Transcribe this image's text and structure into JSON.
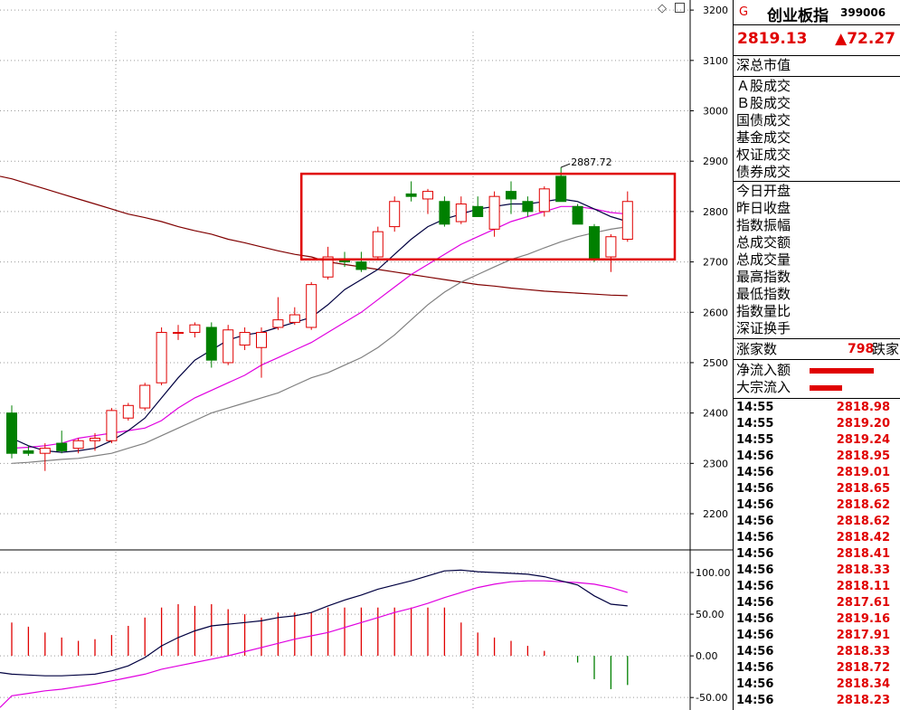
{
  "header": {
    "flag": "G",
    "index_name": "创业板指",
    "index_code": "399006",
    "price": "2819.13",
    "change": "▲72.27"
  },
  "stats_top": [
    "深总市值"
  ],
  "stats_volume": [
    "Ａ股成交",
    "Ｂ股成交",
    "国债成交",
    "基金成交",
    "权证成交",
    "债券成交"
  ],
  "stats_quote": [
    "今日开盘",
    "昨日收盘",
    "指数振幅",
    "总成交额",
    "总成交量",
    "最高指数",
    "最低指数",
    "指数量比",
    "深证换手"
  ],
  "rise": {
    "label": "涨家数",
    "value": "798",
    "label2": "跌家"
  },
  "flow": [
    {
      "label": "净流入额",
      "fraction": 0.75
    },
    {
      "label": "大宗流入",
      "fraction": 0.38
    }
  ],
  "ticks": [
    {
      "time": "14:55",
      "price": "2818.98"
    },
    {
      "time": "14:55",
      "price": "2819.20"
    },
    {
      "time": "14:55",
      "price": "2819.24"
    },
    {
      "time": "14:56",
      "price": "2818.95"
    },
    {
      "time": "14:56",
      "price": "2819.01"
    },
    {
      "time": "14:56",
      "price": "2818.65"
    },
    {
      "time": "14:56",
      "price": "2818.62"
    },
    {
      "time": "14:56",
      "price": "2818.62"
    },
    {
      "time": "14:56",
      "price": "2818.42"
    },
    {
      "time": "14:56",
      "price": "2818.41"
    },
    {
      "time": "14:56",
      "price": "2818.33"
    },
    {
      "time": "14:56",
      "price": "2818.11"
    },
    {
      "time": "14:56",
      "price": "2817.61"
    },
    {
      "time": "14:56",
      "price": "2819.16"
    },
    {
      "time": "14:56",
      "price": "2817.91"
    },
    {
      "time": "14:56",
      "price": "2818.33"
    },
    {
      "time": "14:56",
      "price": "2818.72"
    },
    {
      "time": "14:56",
      "price": "2818.34"
    },
    {
      "time": "14:56",
      "price": "2818.23"
    }
  ],
  "colors": {
    "up": "#e00000",
    "down": "#008000",
    "ma_short": "#000040",
    "ma_mid": "#e000e0",
    "ma_long": "#808080",
    "ma_longest": "#800000",
    "highlight": "#e00000"
  },
  "chart_data": {
    "type": "candlestick",
    "price_axis": {
      "ticks": [
        3200,
        3100,
        3000,
        2900,
        2800,
        2700,
        2600,
        2500,
        2400,
        2300,
        2200
      ],
      "range": [
        2130,
        3220
      ]
    },
    "high_label": "2887.72",
    "candles": [
      {
        "o": 2400,
        "h": 2415,
        "l": 2310,
        "c": 2320
      },
      {
        "o": 2325,
        "h": 2335,
        "l": 2315,
        "c": 2320
      },
      {
        "o": 2320,
        "h": 2340,
        "l": 2285,
        "c": 2330
      },
      {
        "o": 2340,
        "h": 2365,
        "l": 2320,
        "c": 2325
      },
      {
        "o": 2330,
        "h": 2350,
        "l": 2320,
        "c": 2345
      },
      {
        "o": 2345,
        "h": 2360,
        "l": 2325,
        "c": 2350
      },
      {
        "o": 2345,
        "h": 2410,
        "l": 2340,
        "c": 2405
      },
      {
        "o": 2390,
        "h": 2420,
        "l": 2385,
        "c": 2415
      },
      {
        "o": 2410,
        "h": 2460,
        "l": 2405,
        "c": 2455
      },
      {
        "o": 2460,
        "h": 2570,
        "l": 2455,
        "c": 2560
      },
      {
        "o": 2560,
        "h": 2575,
        "l": 2545,
        "c": 2560
      },
      {
        "o": 2560,
        "h": 2580,
        "l": 2550,
        "c": 2575
      },
      {
        "o": 2570,
        "h": 2580,
        "l": 2490,
        "c": 2505
      },
      {
        "o": 2500,
        "h": 2575,
        "l": 2495,
        "c": 2565
      },
      {
        "o": 2535,
        "h": 2570,
        "l": 2525,
        "c": 2560
      },
      {
        "o": 2530,
        "h": 2570,
        "l": 2470,
        "c": 2560
      },
      {
        "o": 2570,
        "h": 2630,
        "l": 2565,
        "c": 2585
      },
      {
        "o": 2580,
        "h": 2610,
        "l": 2575,
        "c": 2595
      },
      {
        "o": 2570,
        "h": 2660,
        "l": 2565,
        "c": 2655
      },
      {
        "o": 2670,
        "h": 2730,
        "l": 2665,
        "c": 2710
      },
      {
        "o": 2705,
        "h": 2720,
        "l": 2690,
        "c": 2700
      },
      {
        "o": 2700,
        "h": 2720,
        "l": 2680,
        "c": 2685
      },
      {
        "o": 2710,
        "h": 2770,
        "l": 2705,
        "c": 2760
      },
      {
        "o": 2770,
        "h": 2830,
        "l": 2760,
        "c": 2820
      },
      {
        "o": 2835,
        "h": 2860,
        "l": 2820,
        "c": 2830
      },
      {
        "o": 2825,
        "h": 2845,
        "l": 2795,
        "c": 2840
      },
      {
        "o": 2820,
        "h": 2830,
        "l": 2770,
        "c": 2775
      },
      {
        "o": 2780,
        "h": 2830,
        "l": 2775,
        "c": 2815
      },
      {
        "o": 2810,
        "h": 2830,
        "l": 2790,
        "c": 2790
      },
      {
        "o": 2765,
        "h": 2840,
        "l": 2750,
        "c": 2830
      },
      {
        "o": 2840,
        "h": 2860,
        "l": 2795,
        "c": 2825
      },
      {
        "o": 2820,
        "h": 2830,
        "l": 2790,
        "c": 2800
      },
      {
        "o": 2800,
        "h": 2850,
        "l": 2790,
        "c": 2845
      },
      {
        "o": 2870,
        "h": 2887.72,
        "l": 2820,
        "c": 2820
      },
      {
        "o": 2810,
        "h": 2815,
        "l": 2775,
        "c": 2775
      },
      {
        "o": 2770,
        "h": 2775,
        "l": 2700,
        "c": 2705
      },
      {
        "o": 2710,
        "h": 2755,
        "l": 2680,
        "c": 2750
      },
      {
        "o": 2745,
        "h": 2840,
        "l": 2740,
        "c": 2820
      }
    ],
    "ma_short": [
      2350,
      2335,
      2325,
      2322,
      2325,
      2330,
      2345,
      2365,
      2390,
      2430,
      2470,
      2505,
      2525,
      2545,
      2555,
      2560,
      2570,
      2580,
      2590,
      2615,
      2645,
      2665,
      2685,
      2715,
      2745,
      2770,
      2785,
      2795,
      2805,
      2810,
      2815,
      2815,
      2820,
      2825,
      2820,
      2805,
      2790,
      2780
    ],
    "ma_mid": [
      2330,
      2332,
      2335,
      2340,
      2350,
      2355,
      2360,
      2365,
      2370,
      2385,
      2410,
      2430,
      2445,
      2460,
      2475,
      2495,
      2510,
      2525,
      2540,
      2560,
      2580,
      2600,
      2625,
      2650,
      2675,
      2695,
      2715,
      2735,
      2750,
      2765,
      2780,
      2790,
      2800,
      2810,
      2810,
      2805,
      2798,
      2795
    ],
    "ma_long": [
      2300,
      2302,
      2305,
      2308,
      2310,
      2315,
      2320,
      2330,
      2340,
      2355,
      2370,
      2385,
      2400,
      2410,
      2420,
      2430,
      2440,
      2455,
      2470,
      2480,
      2495,
      2510,
      2530,
      2555,
      2585,
      2615,
      2640,
      2660,
      2675,
      2690,
      2705,
      2715,
      2728,
      2740,
      2750,
      2758,
      2765,
      2770
    ],
    "ma_longest": [
      2865,
      2855,
      2845,
      2835,
      2825,
      2815,
      2805,
      2795,
      2788,
      2780,
      2770,
      2762,
      2755,
      2745,
      2738,
      2730,
      2722,
      2715,
      2710,
      2700,
      2695,
      2690,
      2685,
      2680,
      2675,
      2670,
      2665,
      2660,
      2655,
      2652,
      2648,
      2645,
      2642,
      2640,
      2638,
      2636,
      2634,
      2633
    ],
    "indicator": {
      "ticks": [
        100.0,
        50.0,
        0.0,
        -50.0
      ],
      "range": [
        -65,
        125
      ],
      "dif": [
        -22,
        -23,
        -24,
        -24,
        -23,
        -22,
        -18,
        -12,
        -2,
        12,
        22,
        30,
        36,
        38,
        40,
        42,
        46,
        48,
        52,
        60,
        67,
        73,
        80,
        85,
        90,
        96,
        102,
        103,
        101,
        100,
        99,
        98,
        95,
        90,
        85,
        72,
        62,
        60
      ],
      "dea": [
        -48,
        -45,
        -42,
        -40,
        -37,
        -34,
        -30,
        -26,
        -22,
        -16,
        -12,
        -8,
        -4,
        0,
        5,
        10,
        15,
        20,
        24,
        28,
        34,
        40,
        46,
        52,
        57,
        63,
        70,
        76,
        82,
        86,
        89,
        90,
        90,
        89,
        88,
        86,
        82,
        76
      ],
      "hist": [
        40,
        35,
        28,
        22,
        18,
        20,
        25,
        36,
        46,
        58,
        62,
        60,
        62,
        56,
        50,
        46,
        52,
        52,
        52,
        58,
        58,
        58,
        58,
        58,
        58,
        58,
        58,
        40,
        28,
        22,
        18,
        12,
        6,
        0,
        -8,
        -28,
        -40,
        -35
      ]
    }
  }
}
